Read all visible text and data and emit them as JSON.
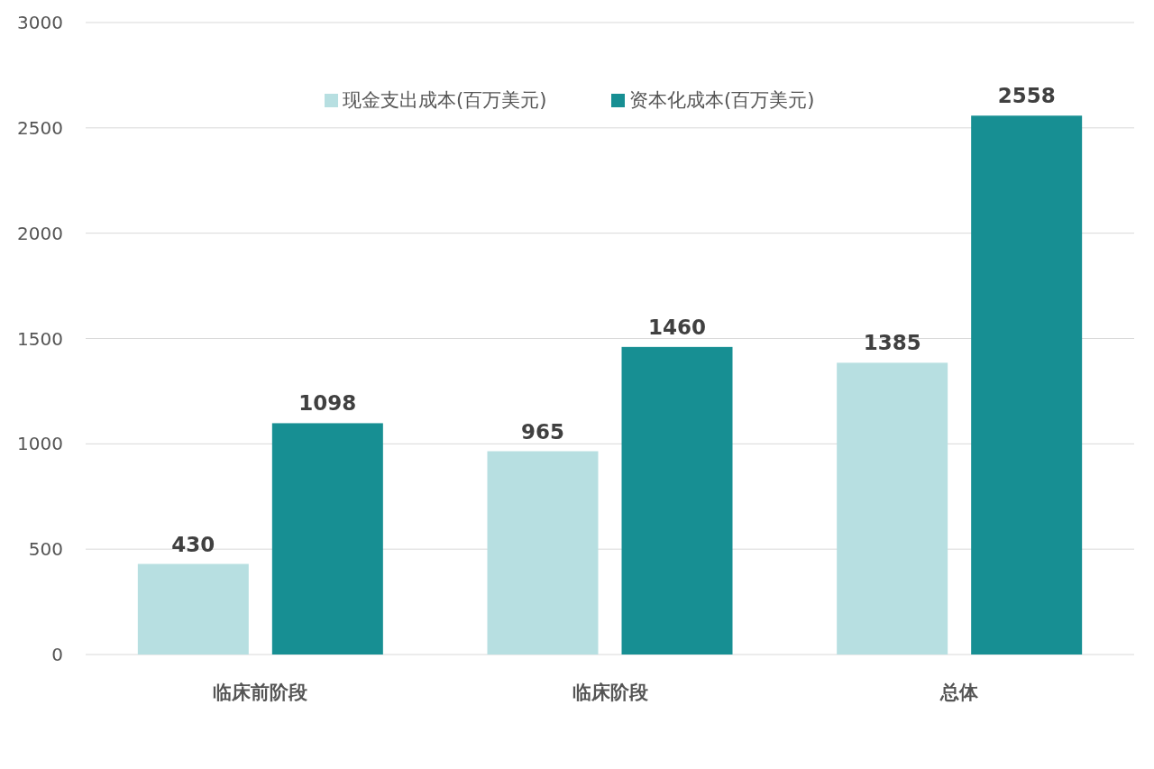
{
  "chart_data": {
    "type": "bar",
    "categories": [
      "临床前阶段",
      "临床阶段",
      "总体"
    ],
    "series": [
      {
        "name": "现金支出成本(百万美元)",
        "color": "#b7dfe1",
        "values": [
          430,
          965,
          1385
        ]
      },
      {
        "name": "资本化成本(百万美元)",
        "color": "#178f93",
        "values": [
          1098,
          1460,
          2558
        ]
      }
    ],
    "ylim": [
      0,
      3000
    ],
    "yticks": [
      0,
      500,
      1000,
      1500,
      2000,
      2500,
      3000
    ],
    "grid": "y",
    "legend": "top",
    "data_labels": true
  }
}
